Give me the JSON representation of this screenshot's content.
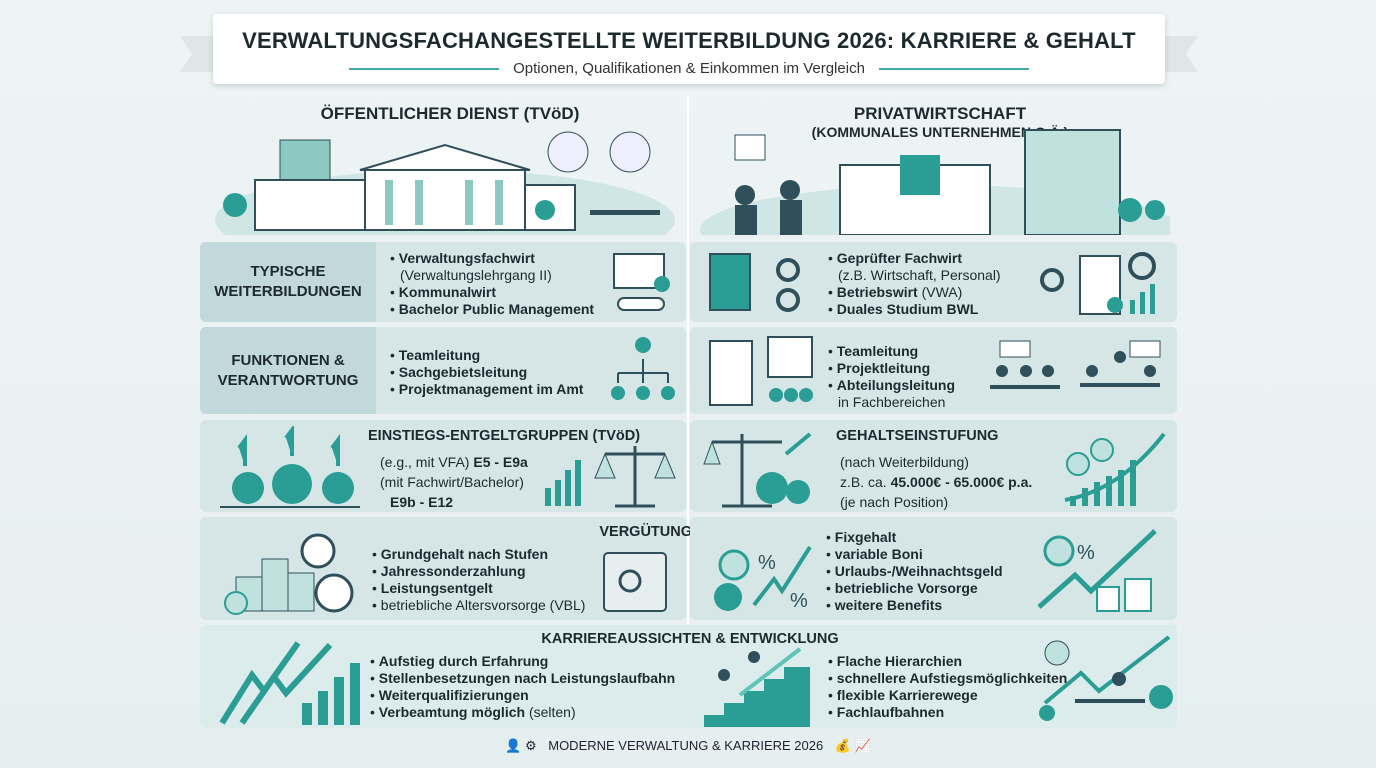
{
  "header": {
    "title": "VERWALTUNGSFACHANGESTELLTE WEITERBILDUNG 2026: KARRIERE & GEHALT",
    "subtitle": "Optionen, Qualifikationen & Einkommen im Vergleich"
  },
  "columns": {
    "left": "ÖFFENTLICHER DIENST (TVöD)",
    "right_line1": "PRIVATWIRTSCHAFT",
    "right_line2": "(KOMMUNALES UNTERNEHMEN O.Ä.)"
  },
  "weiterbildungen": {
    "label_line1": "TYPISCHE",
    "label_line2": "WEITERBILDUNGEN",
    "left": [
      "Verwaltungsfachwirt",
      "(Verwaltungslehrgang II)",
      "Kommunalwirt",
      "Bachelor Public Management"
    ],
    "right": [
      "Geprüfter Fachwirt",
      "(z.B. Wirtschaft, Personal)",
      "Betriebswirt",
      "(VWA)",
      "Duales Studium BWL"
    ]
  },
  "funktionen": {
    "label_line1": "FUNKTIONEN &",
    "label_line2": "VERANTWORTUNG",
    "left": [
      "Teamleitung",
      "Sachgebietsleitung",
      "Projektmanagement im Amt"
    ],
    "right": [
      "Teamleitung",
      "Projektleitung",
      "Abteilungsleitung",
      "in Fachbereichen"
    ]
  },
  "entgelt": {
    "left_title": "EINSTIEGS-ENTGELTGRUPPEN (TVöD)",
    "left_l1_pre": "(e.g., mit VFA)",
    "left_l1_val": "E5 - E9a",
    "left_l2": "(mit Fachwirt/Bachelor)",
    "left_l3": "E9b - E12",
    "right_title": "GEHALTSEINSTUFUNG",
    "right_l1": "(nach Weiterbildung)",
    "right_l2_pre": "z.B. ca.",
    "right_l2_val": "45.000€ - 65.000€ p.a.",
    "right_l3": "(je nach Position)"
  },
  "verguetung": {
    "title": "VERGÜTUNGSELEMENTE",
    "left": [
      "Grundgehalt nach Stufen",
      "Jahressonderzahlung",
      "Leistungsentgelt",
      "betriebliche Altersvorsorge (VBL)"
    ],
    "right": [
      "Fixgehalt",
      "variable Boni",
      "Urlaubs-/Weihnachtsgeld",
      "betriebliche Vorsorge",
      "weitere Benefits"
    ]
  },
  "karriere": {
    "title": "KARRIEREAUSSICHTEN & ENTWICKLUNG",
    "left": [
      "Aufstieg durch Erfahrung",
      "Stellenbesetzungen nach Leistungslaufbahn",
      "Weiterqualifizierungen",
      "Verbeamtung möglich",
      "(selten)"
    ],
    "right": [
      "Flache Hierarchien",
      "schnellere Aufstiegsmöglichkeiten",
      "flexible Karrierewege",
      "Fachlaufbahnen"
    ]
  },
  "footer": {
    "text": "MODERNE VERWALTUNG & KARRIERE 2026"
  },
  "colors": {
    "accent": "#2a9d95",
    "dark": "#2f4f5a",
    "panel": "#d6e6e7"
  }
}
